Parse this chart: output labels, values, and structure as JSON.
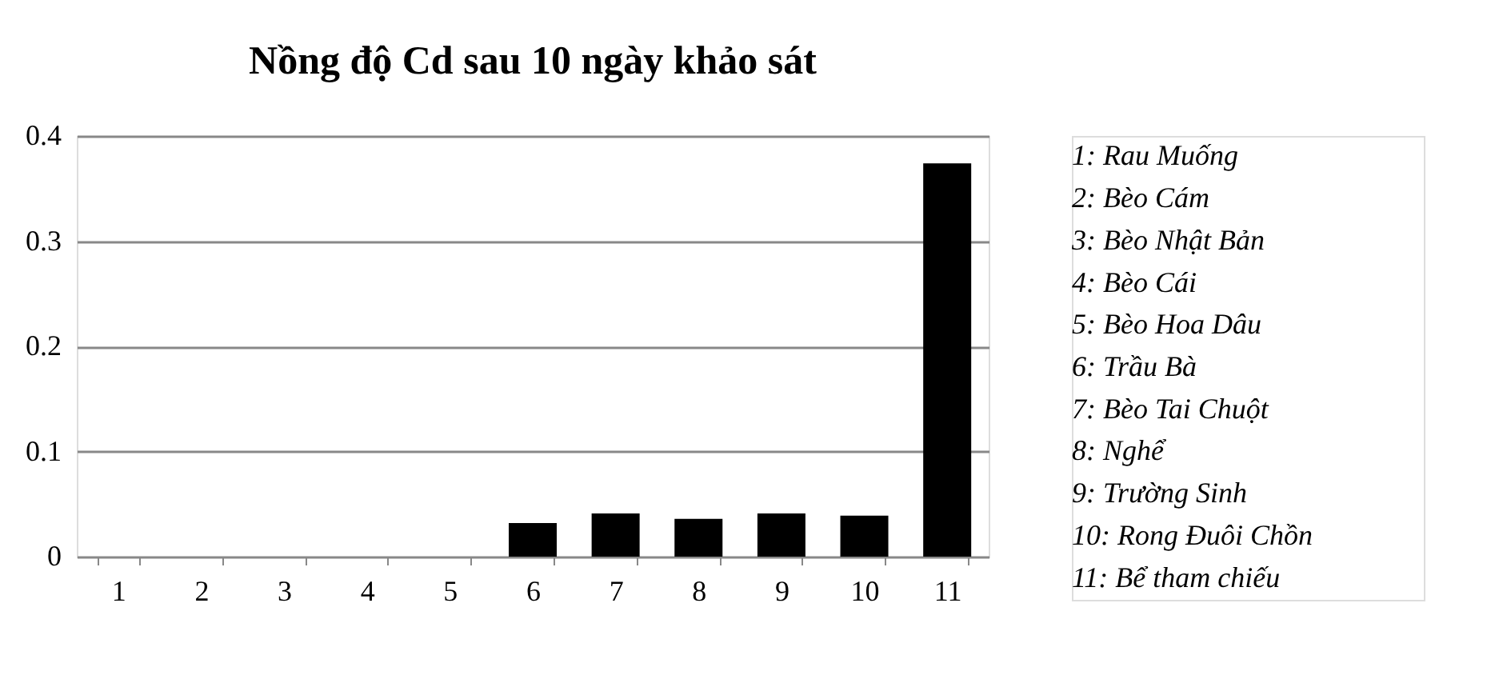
{
  "chart_data": {
    "type": "bar",
    "title": "Nồng độ Cd sau 10 ngày khảo sát",
    "categories": [
      "1",
      "2",
      "3",
      "4",
      "5",
      "6",
      "7",
      "8",
      "9",
      "10",
      "11"
    ],
    "values": [
      0,
      0,
      0,
      0,
      0,
      0.032,
      0.041,
      0.036,
      0.041,
      0.039,
      0.374
    ],
    "color": "#000000",
    "ylim": [
      0,
      0.4
    ],
    "yticks": [
      {
        "value": 0,
        "label": "0"
      },
      0.1,
      0.2,
      0.3,
      0.4
    ],
    "grid": "y",
    "annotations": [
      "1: Rau Muống",
      "2: Bèo Cám",
      "3: Bèo Nhật Bản",
      "4: Bèo Cái",
      "5: Bèo Hoa Dâu",
      "6: Trầu Bà",
      "7: Bèo Tai Chuột",
      "8: Nghể",
      "9: Trường Sinh",
      "10: Rong Đuôi Chồn",
      "11: Bể tham chiếu"
    ]
  }
}
